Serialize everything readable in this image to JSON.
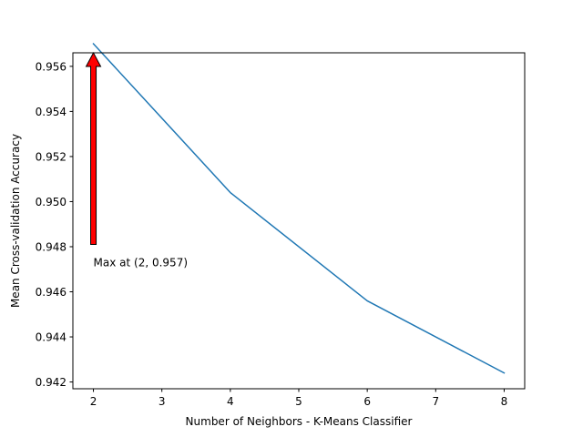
{
  "chart_data": {
    "type": "line",
    "title": "",
    "xlabel": "Number of Neighbors - K-Means Classifier",
    "ylabel": "Mean Cross-validation Accuracy",
    "xlim": [
      1.7,
      8.3
    ],
    "ylim": [
      0.9417,
      0.9566
    ],
    "xticks": [
      2,
      3,
      4,
      5,
      6,
      7,
      8
    ],
    "yticks": [
      0.942,
      0.944,
      0.946,
      0.948,
      0.95,
      0.952,
      0.954,
      0.956
    ],
    "ytick_labels": [
      "0.942",
      "0.944",
      "0.946",
      "0.948",
      "0.950",
      "0.952",
      "0.954",
      "0.956"
    ],
    "grid": false,
    "series": [
      {
        "x": [
          2,
          4,
          6,
          8
        ],
        "y": [
          0.957,
          0.9504,
          0.9456,
          0.9424
        ],
        "color": "#1f77b4"
      }
    ],
    "annotations": [
      {
        "text": "Max at (2, 0.957)",
        "arrow_from": [
          2,
          0.9481
        ],
        "arrow_to": [
          2,
          0.9566
        ],
        "arrow_color": "#ff0000"
      }
    ]
  }
}
